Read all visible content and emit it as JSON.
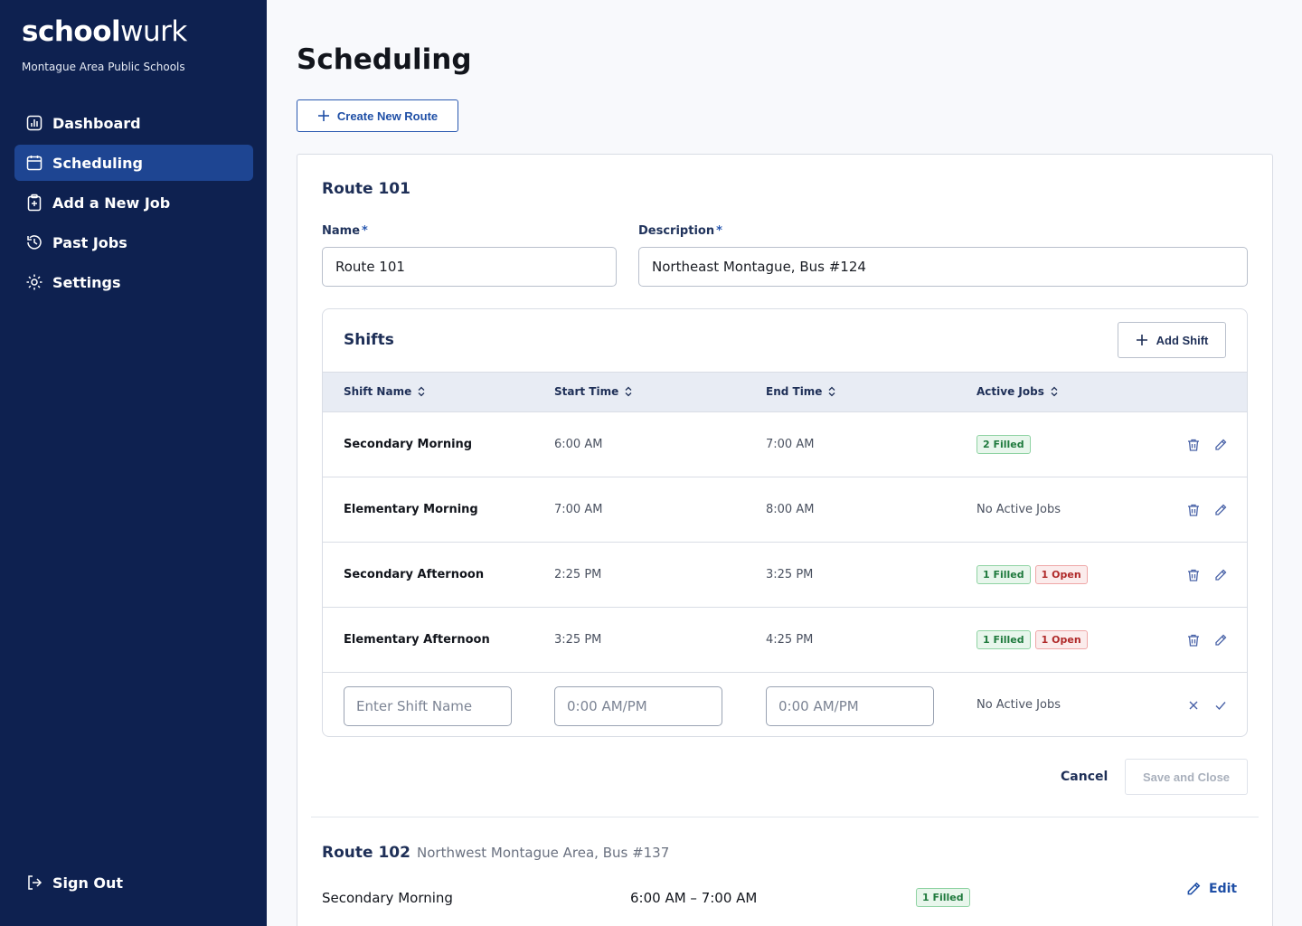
{
  "brand": {
    "name_bold": "school",
    "name_light": "wurk",
    "org": "Montague Area Public Schools"
  },
  "nav": {
    "items": [
      {
        "label": "Dashboard",
        "icon": "chart-icon",
        "active": false
      },
      {
        "label": "Scheduling",
        "icon": "calendar-icon",
        "active": true
      },
      {
        "label": "Add a New Job",
        "icon": "clipboard-plus-icon",
        "active": false
      },
      {
        "label": "Past Jobs",
        "icon": "clock-history-icon",
        "active": false
      },
      {
        "label": "Settings",
        "icon": "gear-icon",
        "active": false
      }
    ],
    "signout": "Sign Out"
  },
  "page": {
    "title": "Scheduling",
    "create_route": "Create New Route"
  },
  "route": {
    "title": "Route 101",
    "name_label": "Name",
    "name_value": "Route 101",
    "desc_label": "Description",
    "desc_value": "Northeast Montague, Bus #124",
    "required_mark": "*"
  },
  "shifts": {
    "title": "Shifts",
    "add_label": "Add Shift",
    "columns": [
      "Shift Name",
      "Start Time",
      "End Time",
      "Active Jobs"
    ],
    "rows": [
      {
        "name": "Secondary Morning",
        "start": "6:00 AM",
        "end": "7:00 AM",
        "filled": "2 Filled",
        "open": "",
        "none": ""
      },
      {
        "name": "Elementary Morning",
        "start": "7:00 AM",
        "end": "8:00 AM",
        "filled": "",
        "open": "",
        "none": "No Active Jobs"
      },
      {
        "name": "Secondary Afternoon",
        "start": "2:25 PM",
        "end": "3:25 PM",
        "filled": "1 Filled",
        "open": "1 Open",
        "none": ""
      },
      {
        "name": "Elementary Afternoon",
        "start": "3:25 PM",
        "end": "4:25 PM",
        "filled": "1 Filled",
        "open": "1 Open",
        "none": ""
      }
    ],
    "new_row": {
      "name_placeholder": "Enter Shift Name",
      "start_placeholder": "0:00 AM/PM",
      "end_placeholder": "0:00 AM/PM",
      "jobs": "No Active Jobs"
    }
  },
  "actions": {
    "cancel": "Cancel",
    "save": "Save and Close"
  },
  "route2": {
    "title": "Route 102",
    "desc": "Northwest Montague Area, Bus #137",
    "edit": "Edit",
    "rows": [
      {
        "name": "Secondary Morning",
        "time": "6:00 AM – 7:00 AM",
        "badge": "1 Filled"
      }
    ]
  },
  "colors": {
    "sidebar": "#0e2150",
    "active_nav": "#1e4592",
    "accent": "#1f4fa6",
    "filled": "#1f7a3d",
    "open": "#b02a2a"
  }
}
